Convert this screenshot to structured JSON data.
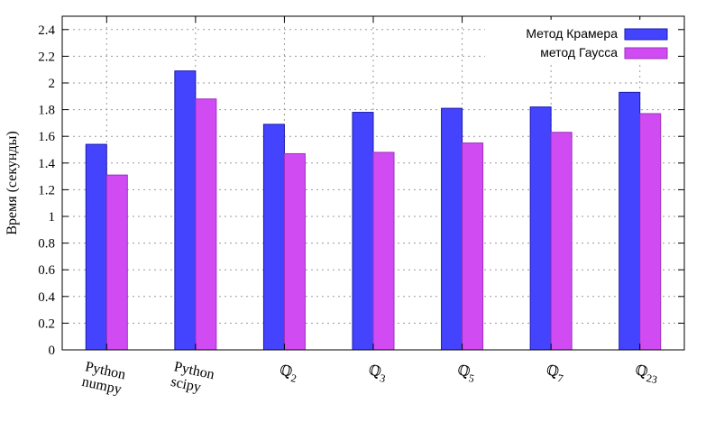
{
  "chart_data": {
    "type": "bar",
    "ylabel": "Время (секунды)",
    "ylim": [
      0,
      2.5
    ],
    "yticks": [
      0,
      0.2,
      0.4,
      0.6,
      0.8,
      1,
      1.2,
      1.4,
      1.6,
      1.8,
      2,
      2.2,
      2.4
    ],
    "ytick_labels": [
      "0",
      "0.2",
      "0.4",
      "0.6",
      "0.8",
      "1",
      "1.2",
      "1.4",
      "1.6",
      "1.8",
      "2",
      "2.2",
      "2.4"
    ],
    "grid": true,
    "legend_position": "top-right",
    "categories": [
      {
        "main": "Python",
        "line2": "numpy"
      },
      {
        "main": "Python",
        "line2": "scipy"
      },
      {
        "main": "ℚ",
        "sub": "2"
      },
      {
        "main": "ℚ",
        "sub": "3"
      },
      {
        "main": "ℚ",
        "sub": "5"
      },
      {
        "main": "ℚ",
        "sub": "7"
      },
      {
        "main": "ℚ",
        "sub": "23"
      }
    ],
    "series": [
      {
        "name": "Метод Крамера",
        "color": "#4444ff",
        "stroke": "#1a1aaa",
        "values": [
          1.54,
          2.09,
          1.69,
          1.78,
          1.81,
          1.82,
          1.93
        ]
      },
      {
        "name": "метод Гаусса",
        "color": "#d04cf2",
        "stroke": "#9b2fc0",
        "values": [
          1.31,
          1.88,
          1.47,
          1.48,
          1.55,
          1.63,
          1.77
        ]
      }
    ]
  }
}
